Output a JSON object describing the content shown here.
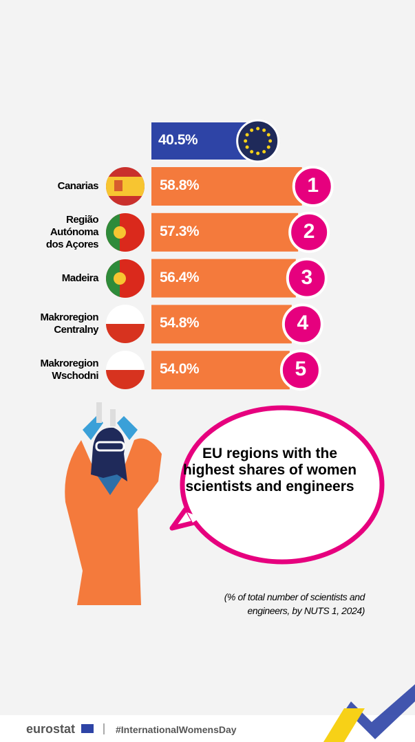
{
  "chart_data": {
    "type": "bar",
    "title": "EU regions with the highest shares of women scientists and engineers",
    "subtitle": "(% of total number of scientists and engineers, by NUTS 1, 2024)",
    "categories": [
      "Canarias",
      "Região\nAutónoma\ndos Açores",
      "Madeira",
      "Makroregion\nCentralny",
      "Makroregion\nWschodni"
    ],
    "values": [
      58.8,
      57.3,
      56.4,
      54.8,
      54.0
    ],
    "value_labels": [
      "58.8%",
      "57.3%",
      "56.4%",
      "54.8%",
      "54.0%"
    ],
    "ranks": [
      1,
      2,
      3,
      4,
      5
    ],
    "color": "#f47a3c",
    "rank_color": "#e6007e",
    "reference": {
      "value": 40.5,
      "label": "40.5%",
      "color": "#2e44a6"
    },
    "footer": {
      "brand": "eurostat",
      "hashtag": "#InternationalWomensDay"
    }
  }
}
